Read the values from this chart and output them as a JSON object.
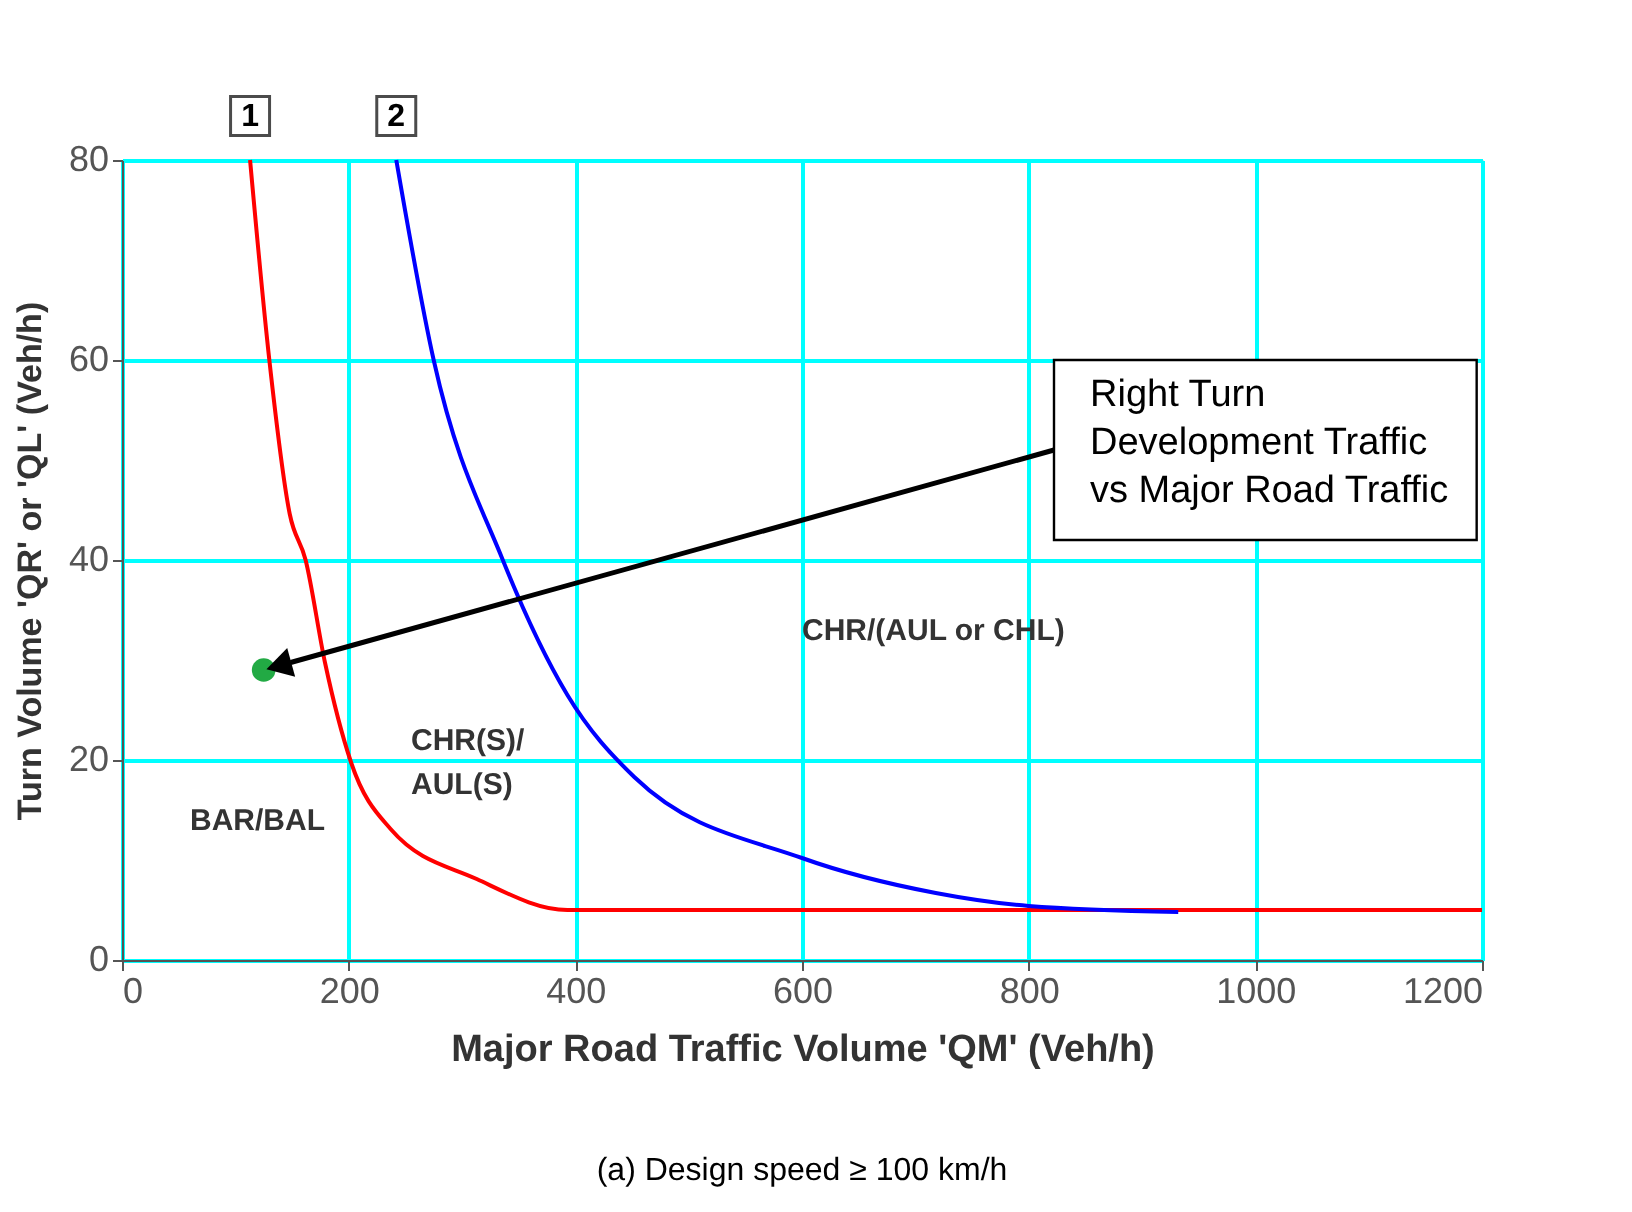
{
  "chart_data": {
    "type": "line",
    "xlabel": "Major Road Traffic Volume 'QM' (Veh/h)",
    "ylabel": "Turn Volume 'QR' or 'QL' (Veh/h)",
    "xlim": [
      0,
      1200
    ],
    "xticks": [
      0,
      200,
      400,
      600,
      800,
      {
        "value": 1000,
        "label": "1000"
      },
      {
        "value": 1200,
        "label": "1200"
      }
    ],
    "ylim": [
      0,
      80
    ],
    "yticks": [
      0,
      20,
      40,
      60,
      80
    ],
    "grid": true,
    "legend": false,
    "marker": "none",
    "line_style": "solid",
    "series": [
      {
        "name": "1",
        "color": "#ff0000",
        "x": [
          113,
          130,
          148,
          162,
          179,
          202,
          237,
          313,
          393,
          600,
          800,
          1000,
          1200
        ],
        "values": [
          80,
          60,
          44.6,
          40,
          29.8,
          19.8,
          13.1,
          8.1,
          5,
          5,
          5,
          5,
          5
        ]
      },
      {
        "name": "2",
        "color": "#0000ff",
        "x": [
          242,
          275,
          336,
          393,
          452,
          600,
          718,
          800,
          932
        ],
        "values": [
          80,
          60,
          40,
          26.5,
          18.3,
          10.2,
          6.7,
          5.4,
          4.8
        ]
      },
      {
        "type": "scatter",
        "marker": "circle",
        "color": "#22aa44",
        "x": [
          125
        ],
        "values": [
          29
        ]
      }
    ],
    "annotations": [
      "BAR/BAL",
      "CHR(S)/\nAUL(S)",
      "CHR/(AUL or CHL)",
      "Right Turn\nDevelopment Traffic\nvs Major Road Traffic",
      "(a)  Design speed ≥ 100 km/h"
    ]
  }
}
